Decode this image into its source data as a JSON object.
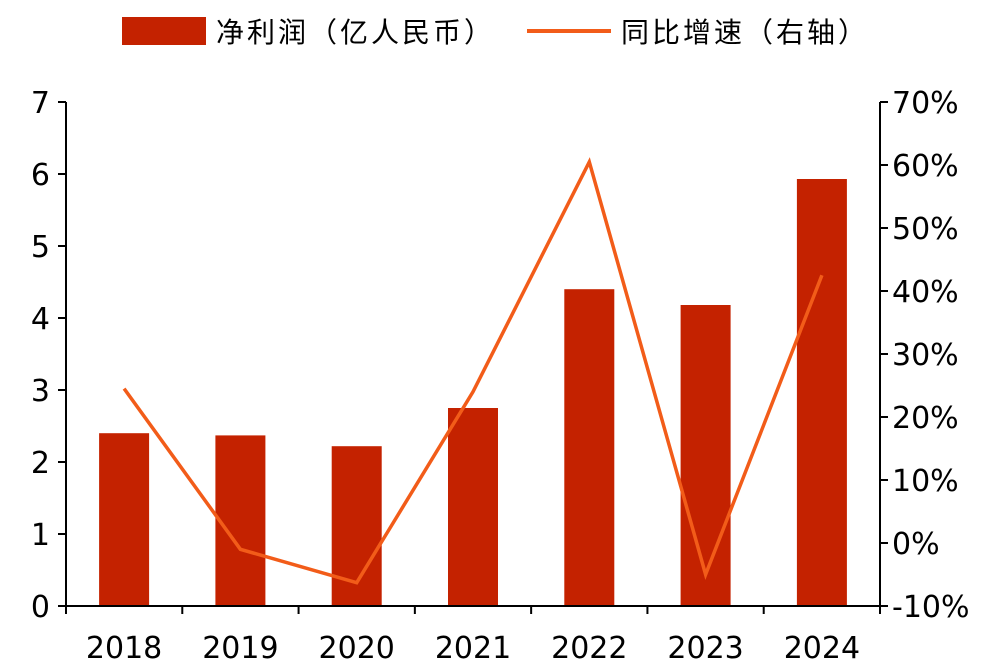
{
  "colors": {
    "bar": "#C42200",
    "line": "#F25C19",
    "axis": "#000000",
    "text": "#000000"
  },
  "legend": {
    "bar_label": "净利润（亿人民币）",
    "line_label": "同比增速（右轴）"
  },
  "chart_data": {
    "type": "bar",
    "title": "",
    "xlabel": "",
    "ylabel": "",
    "categories": [
      "2018",
      "2019",
      "2020",
      "2021",
      "2022",
      "2023",
      "2024"
    ],
    "series": [
      {
        "name": "净利润（亿人民币）",
        "type": "bar",
        "axis": "left",
        "values": [
          2.4,
          2.37,
          2.22,
          2.75,
          4.4,
          4.18,
          5.93
        ]
      },
      {
        "name": "同比增速（右轴）",
        "type": "line",
        "axis": "right",
        "values": [
          0.245,
          -0.01,
          -0.063,
          0.24,
          0.605,
          -0.05,
          0.425
        ]
      }
    ],
    "ylim": [
      0,
      7
    ],
    "y_ticks": [
      "0",
      "1",
      "2",
      "3",
      "4",
      "5",
      "6",
      "7"
    ],
    "y2lim": [
      -0.1,
      0.7
    ],
    "y2_ticks": [
      "-10%",
      "0%",
      "10%",
      "20%",
      "30%",
      "40%",
      "50%",
      "60%",
      "70%"
    ],
    "grid": false,
    "legend_position": "top-center"
  }
}
